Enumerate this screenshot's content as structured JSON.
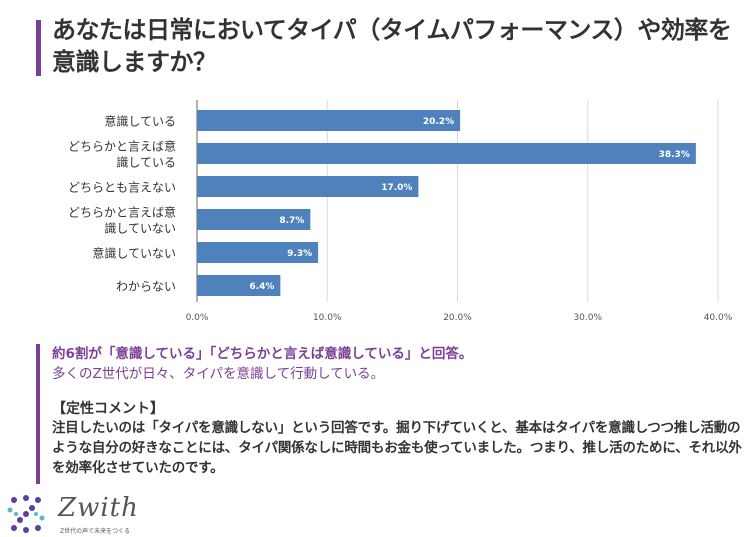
{
  "title": "あなたは日常においてタイパ（タイムパフォーマンス）や効率を意識しますか？",
  "chart_data": {
    "type": "bar",
    "orientation": "horizontal",
    "categories": [
      [
        "意識している"
      ],
      [
        "どちらかと言えば意",
        "識している"
      ],
      [
        "どちらとも言えない"
      ],
      [
        "どちらかと言えば意",
        "識していない"
      ],
      [
        "意識していない"
      ],
      [
        "わからない"
      ]
    ],
    "values": [
      20.2,
      38.3,
      17.0,
      8.7,
      9.3,
      6.4
    ],
    "value_labels": [
      "20.2%",
      "38.3%",
      "17.0%",
      "8.7%",
      "9.3%",
      "6.4%"
    ],
    "xticks": [
      "0.0%",
      "10.0%",
      "20.0%",
      "30.0%",
      "40.0%"
    ],
    "xlim": [
      0,
      40
    ],
    "grid": true,
    "bar_color": "#4f81bd"
  },
  "summary": {
    "line1": "約6割が「意識している」「どちらかと言えば意識している」と回答。",
    "line2": "多くのZ世代が日々、タイパを意識して行動している。"
  },
  "comment": {
    "heading": "【定性コメント】",
    "body": "注目したいのは「タイパを意識しない」という回答です。掘り下げていくと、基本はタイパを意識しつつ推し活動のような自分の好きなことには、タイパ関係なしに時間もお金も使っていました。つまり、推し活のために、それ以外を効率化させていたのです。"
  },
  "logo": {
    "name": "Zwith",
    "tagline": "Z世代の声で未来をつくる",
    "icon": "zwith-logo-icon"
  },
  "colors": {
    "accent": "#7b3f95",
    "bar": "#4f81bd"
  }
}
